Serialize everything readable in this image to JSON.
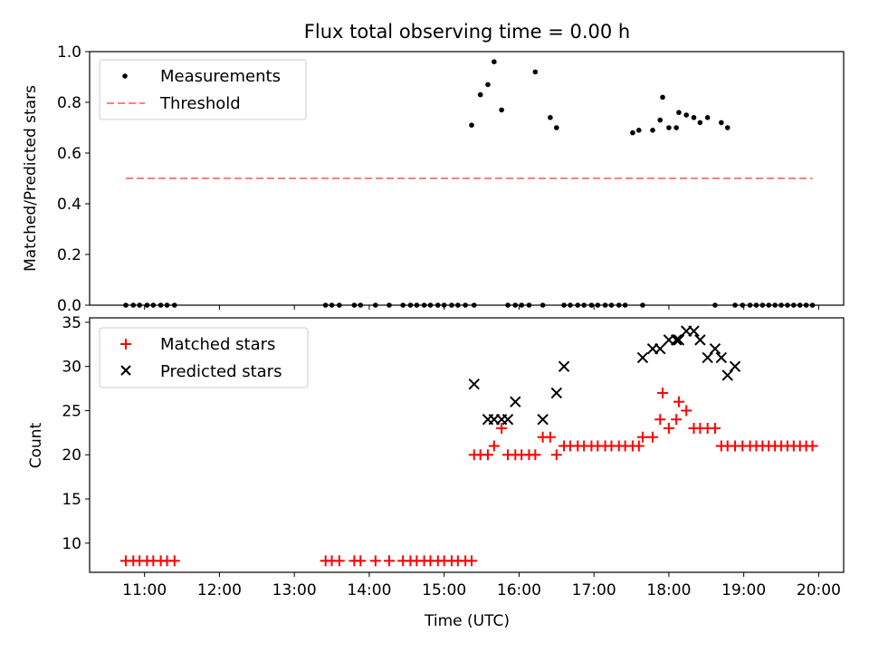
{
  "title": "Flux total observing time = 0.00 h",
  "xlabel": "Time (UTC)",
  "x_ticks": [
    "11:00",
    "12:00",
    "13:00",
    "14:00",
    "15:00",
    "16:00",
    "17:00",
    "18:00",
    "19:00",
    "20:00"
  ],
  "chart_data": [
    {
      "type": "scatter",
      "ylabel": "Matched/Predicted stars",
      "ylim": [
        0.0,
        1.0
      ],
      "y_ticks": [
        "0.0",
        "0.2",
        "0.4",
        "0.6",
        "0.8",
        "1.0"
      ],
      "xlim": [
        "10:16",
        "20:20"
      ],
      "legend_position": "upper-left",
      "series": [
        {
          "name": "Measurements",
          "kind": "scatter",
          "color": "#000000",
          "x": [
            "10:45",
            "10:51",
            "10:56",
            "11:02",
            "11:07",
            "11:13",
            "11:18",
            "11:24",
            "13:25",
            "13:30",
            "13:36",
            "13:48",
            "13:53",
            "14:05",
            "14:16",
            "14:27",
            "14:33",
            "14:38",
            "14:44",
            "14:49",
            "14:55",
            "15:00",
            "15:06",
            "15:11",
            "15:17",
            "15:22",
            "15:24",
            "15:29",
            "15:35",
            "15:40",
            "15:46",
            "15:51",
            "15:57",
            "16:02",
            "16:08",
            "16:13",
            "16:19",
            "16:25",
            "16:30",
            "16:36",
            "16:41",
            "16:47",
            "16:52",
            "16:58",
            "17:03",
            "17:09",
            "17:14",
            "17:20",
            "17:25",
            "17:31",
            "17:36",
            "17:39",
            "17:47",
            "17:53",
            "17:55",
            "18:00",
            "18:06",
            "18:08",
            "18:14",
            "18:20",
            "18:25",
            "18:31",
            "18:37",
            "18:42",
            "18:47",
            "18:53",
            "18:59",
            "19:05",
            "19:10",
            "19:15",
            "19:20",
            "19:25",
            "19:30",
            "19:35",
            "19:40",
            "19:45",
            "19:50",
            "19:55"
          ],
          "y": [
            0,
            0,
            0,
            0,
            0,
            0,
            0,
            0,
            0,
            0,
            0,
            0,
            0,
            0,
            0,
            0,
            0,
            0,
            0,
            0,
            0,
            0,
            0,
            0,
            0,
            0.71,
            0,
            0.83,
            0.87,
            0.96,
            0.77,
            0,
            0,
            0,
            0,
            0.92,
            0,
            0.74,
            0.7,
            0,
            0,
            0,
            0,
            0,
            0,
            0,
            0,
            0,
            0,
            0.68,
            0.69,
            0,
            0.69,
            0.73,
            0.82,
            0.7,
            0.7,
            0.76,
            0.75,
            0.74,
            0.72,
            0.74,
            0,
            0.72,
            0.7,
            0,
            0,
            0,
            0,
            0,
            0,
            0,
            0,
            0,
            0,
            0,
            0,
            0
          ]
        },
        {
          "name": "Threshold",
          "kind": "line",
          "style": "dashed",
          "color": "#ff7f7f",
          "x": [
            "10:45",
            "19:55"
          ],
          "y": [
            0.5,
            0.5
          ]
        }
      ]
    },
    {
      "type": "scatter",
      "ylabel": "Count",
      "ylim": [
        6.7,
        35.5
      ],
      "y_ticks": [
        "10",
        "15",
        "20",
        "25",
        "30",
        "35"
      ],
      "xlim": [
        "10:16",
        "20:20"
      ],
      "legend_position": "upper-left",
      "series": [
        {
          "name": "Matched stars",
          "marker": "plus",
          "color": "#ff0000",
          "x": [
            "10:45",
            "10:51",
            "10:56",
            "11:02",
            "11:07",
            "11:13",
            "11:18",
            "11:24",
            "13:25",
            "13:30",
            "13:36",
            "13:48",
            "13:53",
            "14:05",
            "14:16",
            "14:27",
            "14:33",
            "14:38",
            "14:44",
            "14:49",
            "14:55",
            "15:00",
            "15:06",
            "15:11",
            "15:17",
            "15:22",
            "15:24",
            "15:29",
            "15:35",
            "15:40",
            "15:46",
            "15:51",
            "15:57",
            "16:02",
            "16:08",
            "16:13",
            "16:19",
            "16:25",
            "16:30",
            "16:36",
            "16:41",
            "16:47",
            "16:52",
            "16:58",
            "17:03",
            "17:09",
            "17:14",
            "17:20",
            "17:25",
            "17:31",
            "17:36",
            "17:39",
            "17:47",
            "17:53",
            "17:55",
            "18:00",
            "18:06",
            "18:08",
            "18:14",
            "18:20",
            "18:25",
            "18:31",
            "18:37",
            "18:42",
            "18:47",
            "18:53",
            "18:59",
            "19:05",
            "19:10",
            "19:15",
            "19:20",
            "19:25",
            "19:30",
            "19:35",
            "19:40",
            "19:45",
            "19:50",
            "19:55"
          ],
          "y": [
            8,
            8,
            8,
            8,
            8,
            8,
            8,
            8,
            8,
            8,
            8,
            8,
            8,
            8,
            8,
            8,
            8,
            8,
            8,
            8,
            8,
            8,
            8,
            8,
            8,
            8,
            20,
            20,
            20,
            21,
            23,
            20,
            20,
            20,
            20,
            20,
            22,
            22,
            20,
            21,
            21,
            21,
            21,
            21,
            21,
            21,
            21,
            21,
            21,
            21,
            21,
            22,
            22,
            24,
            27,
            23,
            24,
            26,
            25,
            23,
            23,
            23,
            23,
            21,
            21,
            21,
            21,
            21,
            21,
            21,
            21,
            21,
            21,
            21,
            21,
            21,
            21,
            21
          ]
        },
        {
          "name": "Predicted stars",
          "marker": "x",
          "color": "#000000",
          "x": [
            "15:24",
            "15:35",
            "15:40",
            "15:46",
            "15:51",
            "15:57",
            "16:19",
            "16:30",
            "16:36",
            "17:39",
            "17:47",
            "17:53",
            "18:00",
            "18:06",
            "18:08",
            "18:14",
            "18:20",
            "18:25",
            "18:31",
            "18:37",
            "18:42",
            "18:47",
            "18:53"
          ],
          "y": [
            28,
            24,
            24,
            24,
            24,
            26,
            24,
            27,
            30,
            31,
            32,
            32,
            33,
            33,
            33,
            34,
            34,
            33,
            31,
            32,
            31,
            29,
            30
          ]
        }
      ]
    }
  ]
}
